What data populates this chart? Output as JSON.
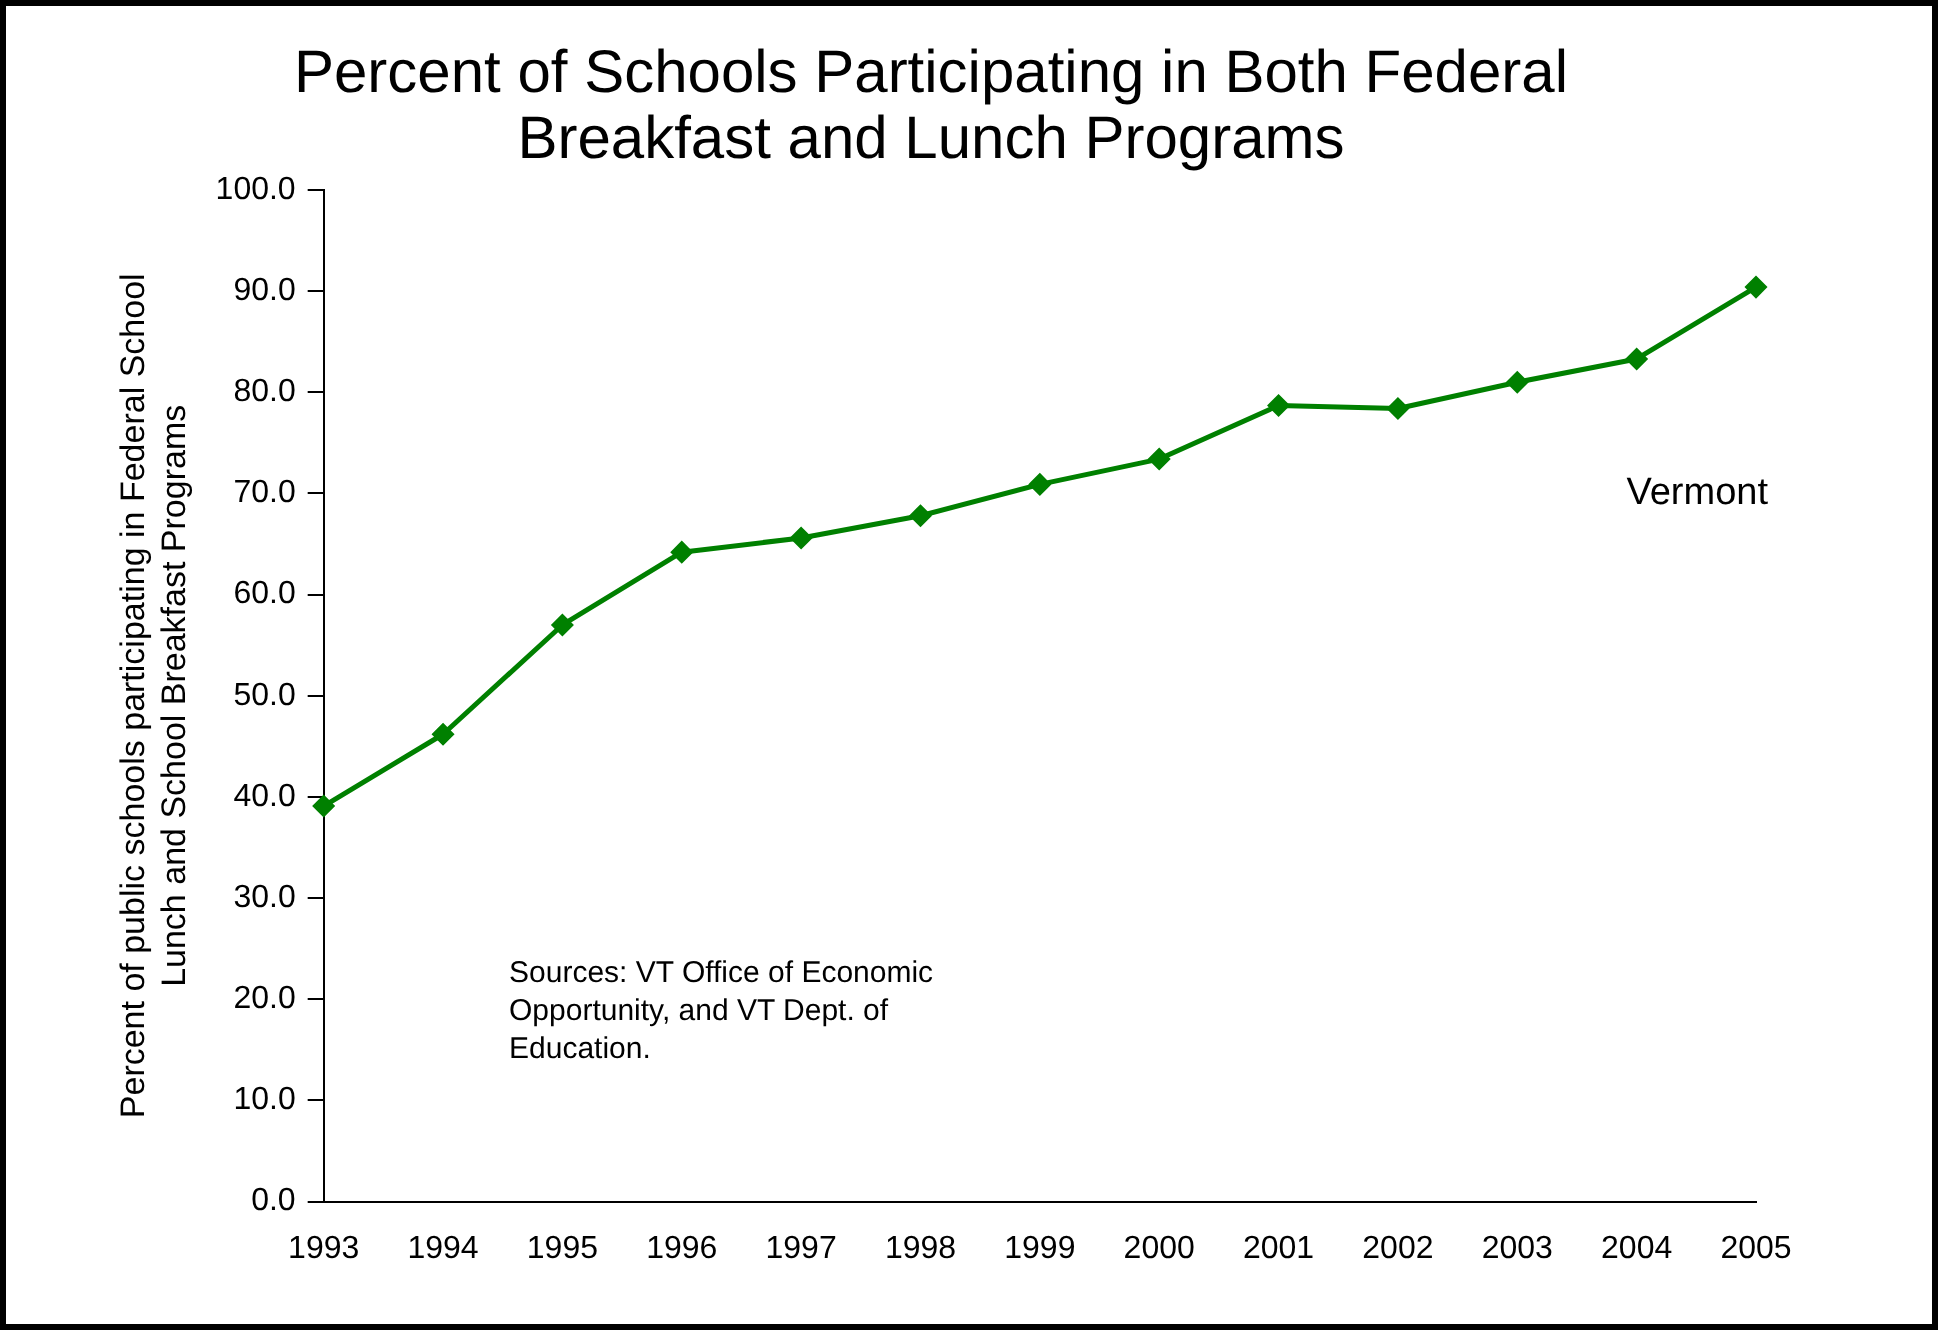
{
  "chart_data": {
    "type": "line",
    "title": "Percent of Schools Participating in Both Federal Breakfast and Lunch Programs",
    "ylabel": "Percent of public schools participating in Federal School Lunch and School Breakfast Programs",
    "categories": [
      "1993",
      "1994",
      "1995",
      "1996",
      "1997",
      "1998",
      "1999",
      "2000",
      "2001",
      "2002",
      "2003",
      "2004",
      "2005"
    ],
    "series": [
      {
        "name": "Vermont",
        "color": "#008000",
        "values": [
          39.1,
          46.2,
          57.0,
          64.2,
          65.6,
          67.8,
          70.9,
          73.4,
          78.7,
          78.4,
          81.0,
          83.3,
          90.4
        ]
      }
    ],
    "ylim": [
      0,
      100
    ],
    "yticks": [
      {
        "value": 0,
        "label": "0.0"
      },
      {
        "value": 10,
        "label": "10.0"
      },
      {
        "value": 20,
        "label": "20.0"
      },
      {
        "value": 30,
        "label": "30.0"
      },
      {
        "value": 40,
        "label": "40.0"
      },
      {
        "value": 50,
        "label": "50.0"
      },
      {
        "value": 60,
        "label": "60.0"
      },
      {
        "value": 70,
        "label": "70.0"
      },
      {
        "value": 80,
        "label": "80.0"
      },
      {
        "value": 90,
        "label": "90.0"
      },
      {
        "value": 100,
        "label": "100.0"
      }
    ],
    "annotations": [
      "Sources: VT Office of Economic Opportunity, and VT Dept. of Education."
    ],
    "grid": false,
    "legend": false,
    "marker": "diamond",
    "line_style": "solid"
  }
}
